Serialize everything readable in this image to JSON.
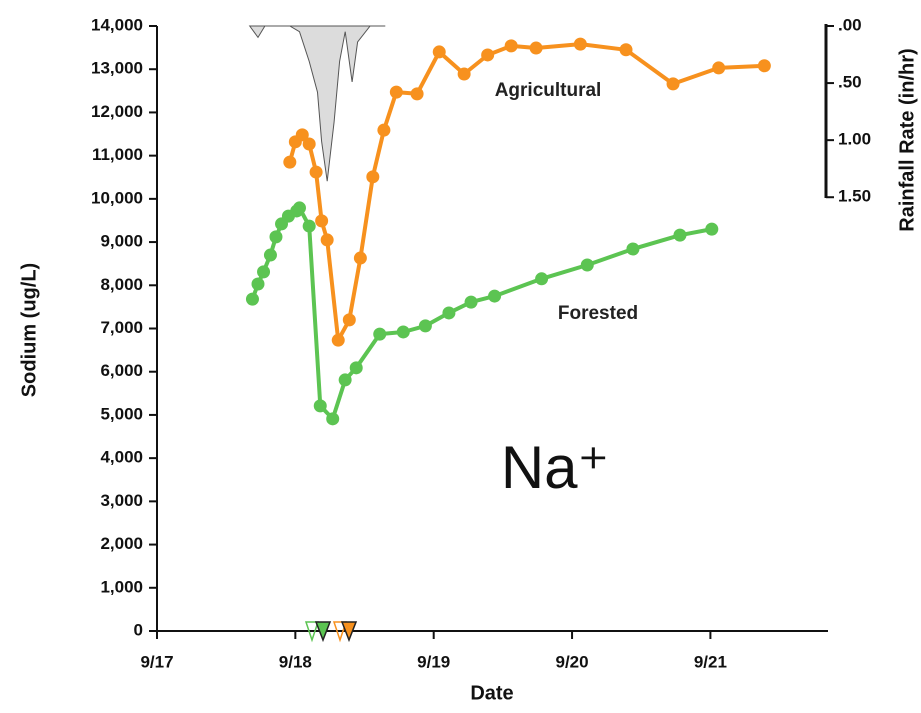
{
  "chart_data": {
    "type": "line",
    "y_label": "Sodium (ug/L)",
    "x_label": "Date",
    "y2_label": "Rainfall Rate (in/hr)",
    "xlim": [
      17,
      21.85
    ],
    "xticks": [
      {
        "value": 17,
        "label": "9/17"
      },
      {
        "value": 18,
        "label": "9/18"
      },
      {
        "value": 19,
        "label": "9/19"
      },
      {
        "value": 20,
        "label": "9/20"
      },
      {
        "value": 21,
        "label": "9/21"
      }
    ],
    "ylim": [
      0,
      14000
    ],
    "yticks": [
      {
        "value": 0,
        "label": "0"
      },
      {
        "value": 1000,
        "label": "1,000"
      },
      {
        "value": 2000,
        "label": "2,000"
      },
      {
        "value": 3000,
        "label": "3,000"
      },
      {
        "value": 4000,
        "label": "4,000"
      },
      {
        "value": 5000,
        "label": "5,000"
      },
      {
        "value": 6000,
        "label": "6,000"
      },
      {
        "value": 7000,
        "label": "7,000"
      },
      {
        "value": 8000,
        "label": "8,000"
      },
      {
        "value": 9000,
        "label": "9,000"
      },
      {
        "value": 10000,
        "label": "10,000"
      },
      {
        "value": 11000,
        "label": "11,000"
      },
      {
        "value": 12000,
        "label": "12,000"
      },
      {
        "value": 13000,
        "label": "13,000"
      },
      {
        "value": 14000,
        "label": "14,000"
      }
    ],
    "y2lim": [
      5.3,
      0
    ],
    "y2ticks": [
      {
        "value": 0,
        "label": ".00"
      },
      {
        "value": 0.5,
        "label": ".50"
      },
      {
        "value": 1,
        "label": "1.00"
      },
      {
        "value": 1.5,
        "label": "1.50"
      }
    ],
    "annotations": [
      "Agricultural",
      "Forested",
      "Na⁺"
    ],
    "series": [
      {
        "name": "Agricultural",
        "color": "#f7911e",
        "markers": true,
        "x": [
          17.96,
          18.0,
          18.05,
          18.1,
          18.15,
          18.19,
          18.23,
          18.31,
          18.39,
          18.47,
          18.56,
          18.64,
          18.73,
          18.88,
          19.04,
          19.22,
          19.39,
          19.56,
          19.74,
          20.06,
          20.39,
          20.73,
          21.06,
          21.39
        ],
        "values": [
          10850,
          11320,
          11480,
          11270,
          10620,
          9490,
          9050,
          6730,
          7200,
          8630,
          10510,
          11590,
          12470,
          12430,
          13400,
          12890,
          13330,
          13540,
          13490,
          13580,
          13450,
          12660,
          13030,
          13080
        ]
      },
      {
        "name": "Forested",
        "color": "#5cc452",
        "markers": true,
        "x": [
          17.69,
          17.73,
          17.77,
          17.82,
          17.86,
          17.9,
          17.95,
          18.01,
          18.03,
          18.1,
          18.18,
          18.27,
          18.36,
          18.44,
          18.61,
          18.78,
          18.94,
          19.11,
          19.27,
          19.44,
          19.78,
          20.11,
          20.44,
          20.78,
          21.01
        ],
        "values": [
          7680,
          8030,
          8310,
          8700,
          9120,
          9420,
          9600,
          9720,
          9790,
          9370,
          5210,
          4910,
          5810,
          6090,
          6870,
          6920,
          7060,
          7360,
          7610,
          7750,
          8150,
          8470,
          8840,
          9160,
          9300
        ]
      },
      {
        "name": "Rainfall",
        "color": "#555555",
        "fill": "#dcdcdc",
        "axis": "y2",
        "x": [
          17.67,
          17.73,
          17.78,
          17.96,
          18.03,
          18.1,
          18.16,
          18.19,
          18.23,
          18.28,
          18.32,
          18.36,
          18.41,
          18.45,
          18.54,
          18.65
        ],
        "values": [
          0,
          0.1,
          0,
          0,
          0.05,
          0.31,
          0.58,
          1.01,
          1.36,
          0.84,
          0.31,
          0.05,
          0.49,
          0.14,
          0,
          0
        ]
      }
    ]
  }
}
